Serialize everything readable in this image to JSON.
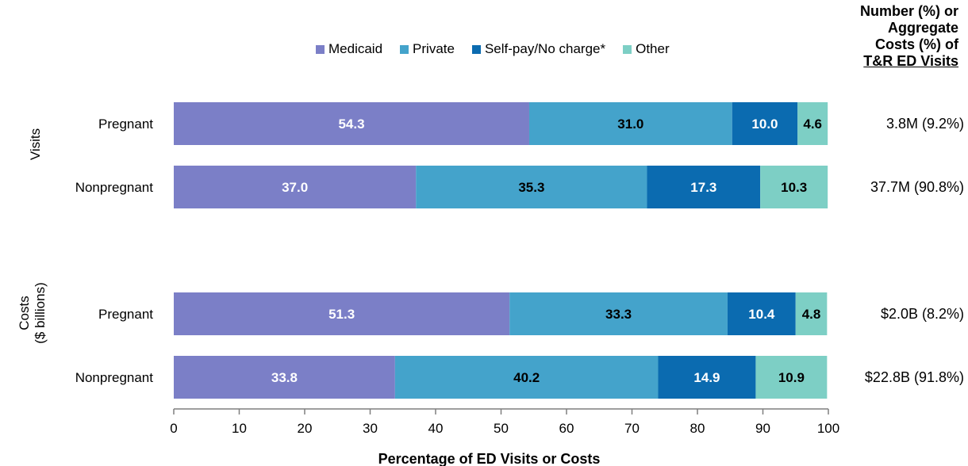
{
  "chart_data": {
    "type": "bar",
    "orientation": "horizontal",
    "stacked": true,
    "xlabel": "Percentage of ED Visits or Costs",
    "xlim": [
      0,
      100
    ],
    "xticks": [
      0,
      10,
      20,
      30,
      40,
      50,
      60,
      70,
      80,
      90,
      100
    ],
    "grid": false,
    "legend_position": "top",
    "series": [
      {
        "name": "Medicaid",
        "color": "#7B7FC7"
      },
      {
        "name": "Private",
        "color": "#44A3CB"
      },
      {
        "name": "Self-pay/No charge*",
        "color": "#0B6BB0"
      },
      {
        "name": "Other",
        "color": "#7DCFC5"
      }
    ],
    "groups": [
      {
        "label": "Visits",
        "label_lines": [
          "Visits"
        ]
      },
      {
        "label": "Costs ($ billions)",
        "label_lines": [
          "Costs",
          "($ billions)"
        ]
      }
    ],
    "rows": [
      {
        "group": 0,
        "category": "Pregnant",
        "values": [
          54.3,
          31.0,
          10.0,
          4.6
        ],
        "value_labels": [
          "54.3",
          "31.0",
          "10.0",
          "4.6"
        ],
        "total_label": "3.8M (9.2%)"
      },
      {
        "group": 0,
        "category": "Nonpregnant",
        "values": [
          37.0,
          35.3,
          17.3,
          10.3
        ],
        "value_labels": [
          "37.0",
          "35.3",
          "17.3",
          "10.3"
        ],
        "total_label": "37.7M (90.8%)"
      },
      {
        "group": 1,
        "category": "Pregnant",
        "values": [
          51.3,
          33.3,
          10.4,
          4.8
        ],
        "value_labels": [
          "51.3",
          "33.3",
          "10.4",
          "4.8"
        ],
        "total_label": "$2.0B (8.2%)"
      },
      {
        "group": 1,
        "category": "Nonpregnant",
        "values": [
          33.8,
          40.2,
          14.9,
          10.9
        ],
        "value_labels": [
          "33.8",
          "40.2",
          "14.9",
          "10.9"
        ],
        "total_label": "$22.8B (91.8%)"
      }
    ],
    "value_label_colors": [
      "#ffffff",
      "#000000",
      "#ffffff",
      "#000000"
    ]
  },
  "side_header": {
    "line1": "Number (%) or",
    "line2": "Aggregate",
    "line3": "Costs (%) of",
    "line4": "T&R ED Visits"
  }
}
